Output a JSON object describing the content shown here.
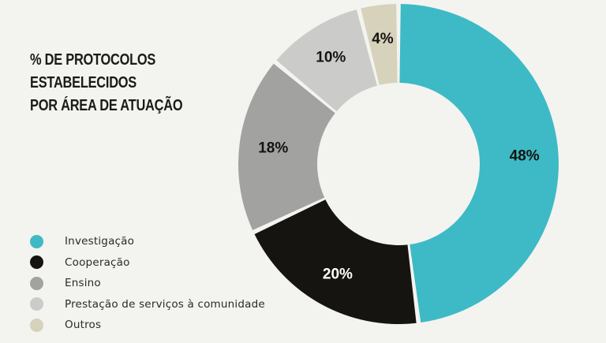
{
  "chart_data": {
    "type": "pie",
    "title": [
      "% DE PROTOCOLOS",
      "ESTABELECIDOS",
      "POR ÁREA DE ATUAÇÃO"
    ],
    "categories": [
      "Investigação",
      "Cooperação",
      "Ensino",
      "Prestação de serviços à comunidade",
      "Outros"
    ],
    "values": [
      48,
      20,
      18,
      10,
      4
    ],
    "data_labels": [
      "48%",
      "20%",
      "18%",
      "10%",
      "4%"
    ],
    "colors": [
      "#3dbac6",
      "#151410",
      "#a2a2a0",
      "#cbcbc9",
      "#d6d2bb"
    ],
    "label_colors": [
      "#151410",
      "#ffffff",
      "#151410",
      "#151410",
      "#151410"
    ],
    "donut": true,
    "legend_position": "bottom-left"
  }
}
